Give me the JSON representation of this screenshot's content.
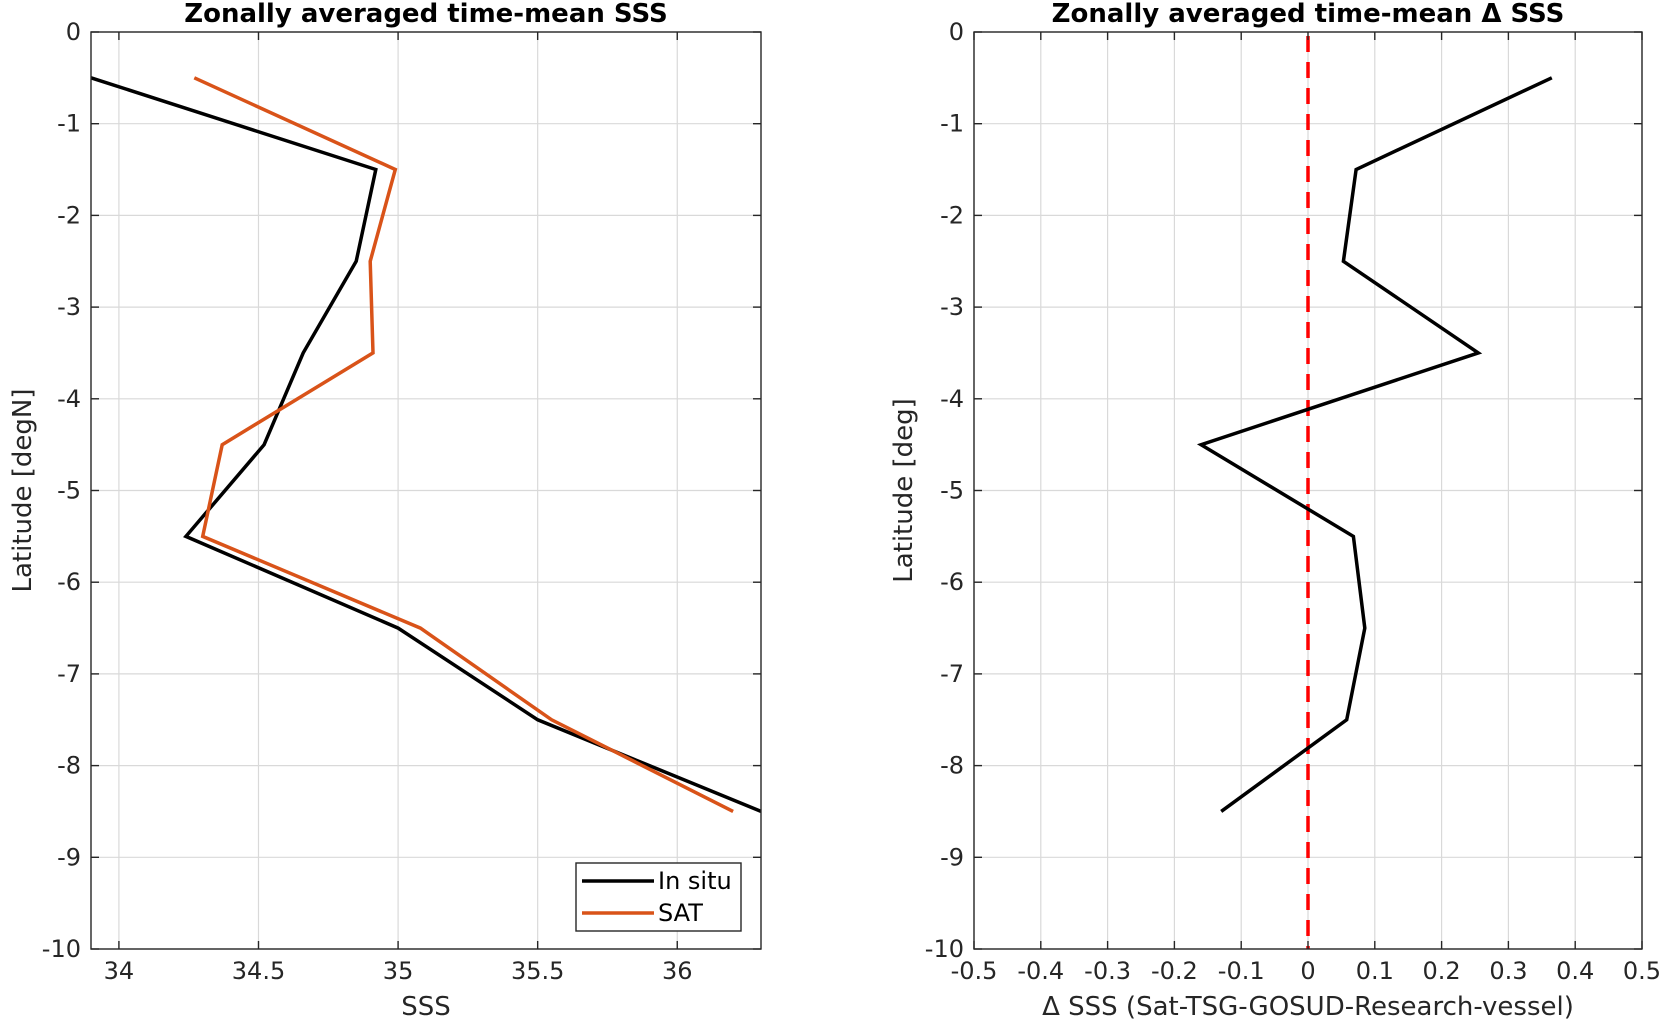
{
  "chart_data": [
    {
      "type": "line",
      "title": "Zonally averaged time-mean SSS",
      "xlabel": "SSS",
      "ylabel": "Latitude [degN]",
      "xlim": [
        33.9,
        36.3
      ],
      "ylim": [
        -10,
        0
      ],
      "xticks": [
        34,
        34.5,
        35,
        35.5,
        36
      ],
      "xtick_labels": [
        "34",
        "34.5",
        "35",
        "35.5",
        "36"
      ],
      "yticks": [
        0,
        -1,
        -2,
        -3,
        -4,
        -5,
        -6,
        -7,
        -8,
        -9,
        -10
      ],
      "ytick_labels": [
        "0",
        "-1",
        "-2",
        "-3",
        "-4",
        "-5",
        "-6",
        "-7",
        "-8",
        "-9",
        "-10"
      ],
      "grid": true,
      "legend_position": "bottom-right",
      "series": [
        {
          "name": "In situ",
          "color": "#000000",
          "x": [
            33.9,
            34.92,
            34.85,
            34.66,
            34.52,
            34.24,
            35.0,
            35.5,
            36.3
          ],
          "y": [
            -0.5,
            -1.5,
            -2.5,
            -3.5,
            -4.5,
            -5.5,
            -6.5,
            -7.5,
            -8.5
          ]
        },
        {
          "name": "SAT",
          "color": "#D95319",
          "x": [
            34.27,
            34.99,
            34.9,
            34.91,
            34.37,
            34.3,
            35.08,
            35.55,
            36.2
          ],
          "y": [
            -0.5,
            -1.5,
            -2.5,
            -3.5,
            -4.5,
            -5.5,
            -6.5,
            -7.5,
            -8.5
          ]
        }
      ]
    },
    {
      "type": "line",
      "title": "Zonally averaged time-mean Δ SSS",
      "xlabel": "Δ SSS (Sat-TSG-GOSUD-Research-vessel)",
      "ylabel": "Latitude [deg]",
      "xlim": [
        -0.5,
        0.5
      ],
      "ylim": [
        -10,
        0
      ],
      "xticks": [
        -0.5,
        -0.4,
        -0.3,
        -0.2,
        -0.1,
        0,
        0.1,
        0.2,
        0.3,
        0.4,
        0.5
      ],
      "xtick_labels": [
        "-0.5",
        "-0.4",
        "-0.3",
        "-0.2",
        "-0.1",
        "0",
        "0.1",
        "0.2",
        "0.3",
        "0.4",
        "0.5"
      ],
      "yticks": [
        0,
        -1,
        -2,
        -3,
        -4,
        -5,
        -6,
        -7,
        -8,
        -9,
        -10
      ],
      "ytick_labels": [
        "0",
        "-1",
        "-2",
        "-3",
        "-4",
        "-5",
        "-6",
        "-7",
        "-8",
        "-9",
        "-10"
      ],
      "grid": true,
      "series": [
        {
          "color": "#000000",
          "x": [
            0.365,
            0.072,
            0.053,
            0.255,
            -0.16,
            0.068,
            0.085,
            0.058,
            -0.13
          ],
          "y": [
            -0.5,
            -1.5,
            -2.5,
            -3.5,
            -4.5,
            -5.5,
            -6.5,
            -7.5,
            -8.5
          ]
        }
      ],
      "reference_line": {
        "x": 0,
        "style": "dashed",
        "color": "#FF0000"
      }
    }
  ]
}
